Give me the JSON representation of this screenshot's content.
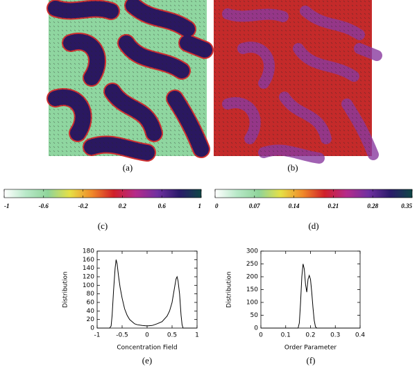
{
  "panel_labels": [
    "(a)",
    "(b)",
    "(c)",
    "(d)",
    "(e)",
    "(f)"
  ],
  "chart_data": [
    {
      "type": "colorbar",
      "xlim": [
        -1,
        1
      ],
      "xticks": [
        -1,
        -0.6,
        -0.2,
        0.2,
        0.6,
        1
      ],
      "colors": [
        "#ffffff",
        "#b8e8c8",
        "#8fd49a",
        "#e6e046",
        "#f08a2a",
        "#d0202a",
        "#b52a8a",
        "#7030a0",
        "#2a1a6a",
        "#0e4646"
      ]
    },
    {
      "type": "colorbar",
      "xlim": [
        0,
        0.35
      ],
      "xticks": [
        0,
        0.07,
        0.14,
        0.21,
        0.28,
        0.35
      ],
      "colors": [
        "#ffffff",
        "#b8e8c8",
        "#8fd49a",
        "#e6e046",
        "#f08a2a",
        "#d0202a",
        "#b52a8a",
        "#7030a0",
        "#2a1a6a",
        "#0e4646"
      ]
    },
    {
      "type": "line",
      "xlabel": "Concentration Field",
      "ylabel": "Distribution",
      "color": "#000000",
      "x": [
        -1,
        -0.75,
        -0.72,
        -0.7,
        -0.67,
        -0.64,
        -0.62,
        -0.6,
        -0.57,
        -0.54,
        -0.5,
        -0.45,
        -0.4,
        -0.35,
        -0.3,
        -0.25,
        -0.2,
        -0.1,
        0,
        0.1,
        0.2,
        0.3,
        0.4,
        0.45,
        0.5,
        0.55,
        0.58,
        0.6,
        0.62,
        0.65,
        0.68,
        0.7,
        0.72,
        1
      ],
      "values": [
        0,
        0,
        5,
        30,
        90,
        140,
        160,
        150,
        120,
        95,
        70,
        45,
        30,
        20,
        15,
        10,
        8,
        6,
        5,
        6,
        10,
        15,
        28,
        40,
        60,
        95,
        115,
        120,
        110,
        80,
        30,
        8,
        0,
        0
      ],
      "xlim": [
        -1,
        1
      ],
      "xticks": [
        -1,
        -0.5,
        0,
        0.5,
        1
      ],
      "ylim": [
        0,
        180
      ],
      "yticks": [
        0,
        20,
        40,
        60,
        80,
        100,
        120,
        140,
        160,
        180
      ]
    },
    {
      "type": "line",
      "xlabel": "Order Parameter",
      "ylabel": "Distribution",
      "color": "#000000",
      "x": [
        0,
        0.15,
        0.155,
        0.16,
        0.165,
        0.17,
        0.175,
        0.18,
        0.185,
        0.19,
        0.195,
        0.2,
        0.205,
        0.21,
        0.215,
        0.22,
        0.225,
        0.4
      ],
      "values": [
        0,
        0,
        20,
        100,
        200,
        250,
        230,
        170,
        140,
        190,
        205,
        190,
        140,
        80,
        30,
        5,
        0,
        0
      ],
      "xlim": [
        0,
        0.4
      ],
      "xticks": [
        0,
        0.1,
        0.2,
        0.3,
        0.4
      ],
      "ylim": [
        0,
        300
      ],
      "yticks": [
        0,
        50,
        100,
        150,
        200,
        250,
        300
      ]
    }
  ]
}
